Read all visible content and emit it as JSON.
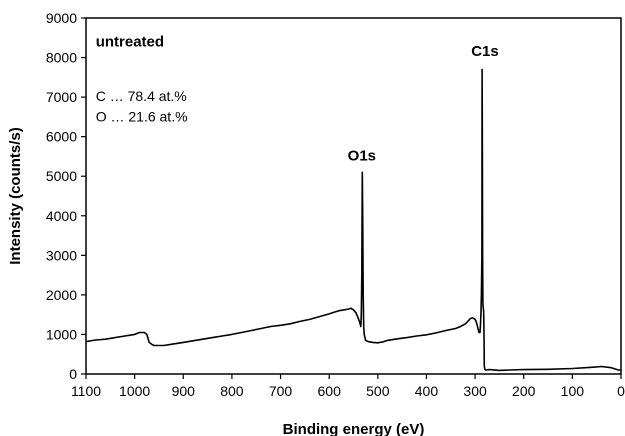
{
  "chart_data": {
    "type": "line",
    "xlabel": "Binding energy (eV)",
    "ylabel": "Intensity (counts/s)",
    "xlim": [
      1100,
      0
    ],
    "ylim": [
      0,
      9000
    ],
    "x_reversed": true,
    "xticks": [
      1100,
      1000,
      900,
      800,
      700,
      600,
      500,
      400,
      300,
      200,
      100,
      0
    ],
    "yticks": [
      0,
      1000,
      2000,
      3000,
      4000,
      5000,
      6000,
      7000,
      8000,
      9000
    ],
    "grid": false,
    "series": [
      {
        "color": "#000000",
        "x": [
          1100,
          1080,
          1060,
          1040,
          1020,
          1000,
          990,
          980,
          975,
          970,
          965,
          960,
          940,
          920,
          900,
          880,
          860,
          840,
          820,
          800,
          780,
          760,
          740,
          720,
          700,
          680,
          660,
          640,
          620,
          600,
          590,
          580,
          570,
          560,
          555,
          550,
          545,
          540,
          537,
          535,
          534,
          533,
          532,
          531,
          530,
          529,
          528,
          527,
          526,
          525,
          520,
          510,
          500,
          490,
          480,
          460,
          440,
          420,
          400,
          380,
          360,
          340,
          330,
          320,
          315,
          310,
          305,
          300,
          298,
          296,
          294,
          292,
          290,
          289,
          288,
          287,
          286,
          285.5,
          285,
          284.5,
          284,
          283.5,
          283,
          282.5,
          282,
          281.5,
          281,
          280,
          279,
          278,
          270,
          250,
          230,
          200,
          150,
          100,
          60,
          40,
          20,
          10,
          5,
          0
        ],
        "y": [
          820,
          860,
          880,
          920,
          960,
          1000,
          1050,
          1050,
          1000,
          800,
          750,
          720,
          720,
          760,
          800,
          840,
          880,
          920,
          960,
          1000,
          1050,
          1100,
          1150,
          1200,
          1230,
          1270,
          1330,
          1380,
          1450,
          1520,
          1560,
          1600,
          1620,
          1640,
          1660,
          1620,
          1550,
          1400,
          1300,
          1200,
          1500,
          2500,
          5100,
          4000,
          2000,
          1200,
          1000,
          950,
          900,
          850,
          820,
          800,
          790,
          810,
          850,
          890,
          920,
          960,
          990,
          1040,
          1100,
          1150,
          1200,
          1270,
          1330,
          1400,
          1420,
          1380,
          1330,
          1250,
          1150,
          1050,
          1050,
          1200,
          1500,
          2000,
          3000,
          7700,
          5500,
          3000,
          1800,
          1700,
          1650,
          1600,
          1400,
          800,
          200,
          120,
          110,
          100,
          110,
          90,
          100,
          110,
          120,
          140,
          170,
          190,
          160,
          120,
          100,
          100
        ]
      }
    ],
    "annotations": [
      {
        "id": "sample",
        "text": "untreated",
        "x": 1080,
        "y": 8280,
        "bold": true
      },
      {
        "id": "comp_c",
        "text": "C … 78.4 at.%",
        "x": 1080,
        "y": 6900,
        "bold": false
      },
      {
        "id": "comp_o",
        "text": "O … 21.6 at.%",
        "x": 1080,
        "y": 6380,
        "bold": false
      },
      {
        "id": "o1s",
        "text": "O1s",
        "x": 562,
        "y": 5400,
        "bold": true
      },
      {
        "id": "c1s",
        "text": "C1s",
        "x": 308,
        "y": 8040,
        "bold": true
      }
    ]
  }
}
